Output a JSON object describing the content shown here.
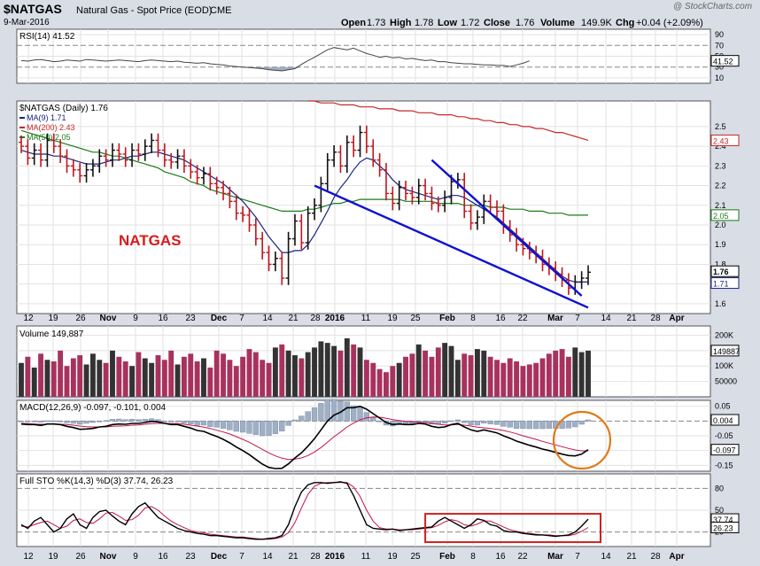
{
  "header": {
    "symbol": "$NATGAS",
    "name": "Natural Gas - Spot Price (EOD)",
    "exchange": "CME",
    "date": "9-Mar-2016",
    "watermark": "@ StockCharts.com",
    "ohlc": {
      "open_label": "Open",
      "open": "1.73",
      "high_label": "High",
      "high": "1.78",
      "low_label": "Low",
      "low": "1.72",
      "close_label": "Close",
      "close": "1.76",
      "volume_label": "Volume",
      "volume": "149.9K",
      "chg_label": "Chg",
      "chg": "+0.04 (+2.09%)"
    }
  },
  "annotation": "NATGAS",
  "x_axis_labels": [
    "12",
    "19",
    "26",
    "Nov",
    "9",
    "16",
    "23",
    "Dec",
    "7",
    "14",
    "21",
    "28",
    "2016",
    "11",
    "19",
    "25",
    "Feb",
    "8",
    "16",
    "22",
    "Mar",
    "7",
    "14",
    "21",
    "28",
    "Apr"
  ],
  "colors": {
    "up_bar": "#111111",
    "down_bar": "#c0161f",
    "ma9": "#1a237e",
    "ma200": "#c62828",
    "ma50": "#1b7a1b",
    "trend": "#1010d0",
    "vol_up": "#333333",
    "vol_down": "#a8325e",
    "highlight": "#e07a1a",
    "box": "#d02020",
    "panel_bg": "#ffffff",
    "frame_bg": "#d8dde6"
  },
  "chart_data": [
    {
      "panel": "rsi",
      "type": "line",
      "legend": "RSI(14) 41.52",
      "y_ticks": [
        10,
        30,
        41.52,
        50,
        70,
        90
      ],
      "last_value_label": "41.52",
      "overbought": 70,
      "oversold": 30,
      "ylim": [
        0,
        100
      ],
      "values": [
        42,
        41,
        43,
        44,
        42,
        40,
        41,
        43,
        42,
        41,
        44,
        43,
        42,
        41,
        42,
        43,
        42,
        41,
        40,
        42,
        43,
        42,
        41,
        40,
        41,
        39,
        38,
        37,
        38,
        36,
        35,
        34,
        32,
        31,
        30,
        29,
        28,
        27,
        25,
        24,
        23,
        25,
        27,
        35,
        42,
        48,
        55,
        62,
        66,
        64,
        62,
        65,
        60,
        55,
        52,
        48,
        50,
        47,
        48,
        45,
        46,
        44,
        42,
        43,
        40,
        40,
        38,
        37,
        36,
        36,
        35,
        34,
        34,
        33,
        33,
        31,
        34,
        37,
        41.52
      ]
    },
    {
      "panel": "price",
      "type": "ohlc",
      "legend": [
        "$NATGAS (Daily) 1.76",
        "MA(9) 1.71",
        "MA(200) 2.43",
        "MA(50) 2.05"
      ],
      "y_ticks": [
        1.6,
        1.7,
        1.8,
        1.9,
        2.0,
        2.1,
        2.2,
        2.3,
        2.4,
        2.5
      ],
      "ylim": [
        1.55,
        2.63
      ],
      "last_value_labels": {
        "close": "1.76",
        "ma9": "1.71",
        "ma200": "2.43",
        "ma50": "2.05"
      },
      "close": [
        2.4,
        2.34,
        2.38,
        2.33,
        2.43,
        2.4,
        2.35,
        2.3,
        2.28,
        2.25,
        2.28,
        2.3,
        2.35,
        2.33,
        2.38,
        2.36,
        2.33,
        2.38,
        2.36,
        2.4,
        2.43,
        2.38,
        2.33,
        2.32,
        2.35,
        2.3,
        2.27,
        2.24,
        2.26,
        2.21,
        2.19,
        2.16,
        2.12,
        2.06,
        2.05,
        2.0,
        1.93,
        1.86,
        1.8,
        1.83,
        1.73,
        1.93,
        2.02,
        1.91,
        2.06,
        2.1,
        2.21,
        2.33,
        2.37,
        2.3,
        2.42,
        2.38,
        2.47,
        2.4,
        2.33,
        2.28,
        2.16,
        2.11,
        2.19,
        2.16,
        2.14,
        2.2,
        2.16,
        2.11,
        2.1,
        2.14,
        2.22,
        2.23,
        2.07,
        2.01,
        2.04,
        2.12,
        2.09,
        2.07,
        1.99,
        1.95,
        1.9,
        1.88,
        1.86,
        1.84,
        1.8,
        1.78,
        1.75,
        1.72,
        1.68,
        1.71,
        1.73,
        1.76
      ],
      "ma9": [
        2.38,
        2.37,
        2.36,
        2.36,
        2.36,
        2.35,
        2.35,
        2.34,
        2.33,
        2.32,
        2.31,
        2.31,
        2.31,
        2.32,
        2.33,
        2.33,
        2.34,
        2.35,
        2.35,
        2.36,
        2.37,
        2.37,
        2.36,
        2.35,
        2.34,
        2.33,
        2.31,
        2.29,
        2.27,
        2.25,
        2.23,
        2.21,
        2.18,
        2.15,
        2.12,
        2.08,
        2.04,
        1.99,
        1.94,
        1.9,
        1.86,
        1.86,
        1.87,
        1.87,
        1.9,
        1.95,
        2.01,
        2.07,
        2.14,
        2.19,
        2.23,
        2.28,
        2.32,
        2.34,
        2.33,
        2.3,
        2.27,
        2.23,
        2.2,
        2.18,
        2.17,
        2.16,
        2.15,
        2.14,
        2.13,
        2.14,
        2.15,
        2.15,
        2.14,
        2.12,
        2.1,
        2.08,
        2.06,
        2.04,
        2.01,
        1.98,
        1.95,
        1.92,
        1.89,
        1.86,
        1.83,
        1.8,
        1.77,
        1.74,
        1.72,
        1.71,
        1.71,
        1.71
      ],
      "ma50": [
        2.48,
        2.47,
        2.46,
        2.45,
        2.44,
        2.43,
        2.42,
        2.41,
        2.4,
        2.39,
        2.38,
        2.37,
        2.37,
        2.36,
        2.35,
        2.35,
        2.34,
        2.33,
        2.32,
        2.31,
        2.3,
        2.29,
        2.27,
        2.26,
        2.25,
        2.24,
        2.22,
        2.21,
        2.2,
        2.18,
        2.17,
        2.16,
        2.15,
        2.14,
        2.13,
        2.12,
        2.11,
        2.1,
        2.09,
        2.08,
        2.07,
        2.07,
        2.07,
        2.07,
        2.08,
        2.08,
        2.09,
        2.1,
        2.11,
        2.11,
        2.12,
        2.12,
        2.13,
        2.13,
        2.13,
        2.13,
        2.13,
        2.13,
        2.13,
        2.12,
        2.12,
        2.12,
        2.12,
        2.12,
        2.11,
        2.11,
        2.11,
        2.11,
        2.1,
        2.1,
        2.1,
        2.1,
        2.09,
        2.09,
        2.09,
        2.08,
        2.08,
        2.08,
        2.07,
        2.07,
        2.07,
        2.06,
        2.06,
        2.06,
        2.05,
        2.05,
        2.05,
        2.05
      ],
      "ma200": [
        null,
        null,
        null,
        null,
        null,
        null,
        null,
        null,
        null,
        null,
        null,
        null,
        null,
        null,
        null,
        null,
        null,
        null,
        null,
        null,
        null,
        null,
        null,
        null,
        null,
        null,
        null,
        null,
        null,
        null,
        null,
        null,
        null,
        null,
        null,
        null,
        null,
        null,
        null,
        null,
        null,
        null,
        null,
        null,
        2.63,
        2.63,
        2.62,
        2.62,
        2.62,
        2.61,
        2.61,
        2.61,
        2.6,
        2.6,
        2.6,
        2.59,
        2.59,
        2.59,
        2.58,
        2.58,
        2.58,
        2.57,
        2.57,
        2.57,
        2.56,
        2.56,
        2.56,
        2.55,
        2.55,
        2.54,
        2.54,
        2.53,
        2.53,
        2.52,
        2.52,
        2.51,
        2.51,
        2.5,
        2.5,
        2.49,
        2.49,
        2.48,
        2.47,
        2.47,
        2.46,
        2.45,
        2.44,
        2.43
      ]
    },
    {
      "panel": "volume",
      "type": "bar",
      "legend": "Volume 149,887",
      "y_ticks": [
        "50000",
        "100K",
        "150K",
        "200K"
      ],
      "y_tick_values": [
        50000,
        100000,
        150000,
        200000
      ],
      "last_value_label": "149887",
      "ylim": [
        0,
        230000
      ],
      "values": [
        110000,
        130000,
        95000,
        140000,
        120000,
        115000,
        150000,
        100000,
        125000,
        135000,
        105000,
        140000,
        120000,
        110000,
        150000,
        130000,
        115000,
        100000,
        145000,
        125000,
        110000,
        135000,
        120000,
        150000,
        105000,
        130000,
        140000,
        115000,
        125000,
        95000,
        150000,
        140000,
        120000,
        100000,
        130000,
        155000,
        145000,
        120000,
        110000,
        160000,
        170000,
        150000,
        135000,
        125000,
        145000,
        160000,
        180000,
        175000,
        165000,
        150000,
        190000,
        170000,
        160000,
        120000,
        110000,
        90000,
        80000,
        100000,
        110000,
        130000,
        140000,
        170000,
        150000,
        130000,
        160000,
        175000,
        165000,
        120000,
        140000,
        135000,
        155000,
        150000,
        130000,
        120000,
        110000,
        125000,
        115000,
        100000,
        105000,
        110000,
        125000,
        140000,
        150000,
        155000,
        130000,
        160000,
        145000,
        149887
      ]
    },
    {
      "panel": "macd",
      "type": "line",
      "legend": "MACD(12,26,9) -0.097, -0.101, 0.004",
      "y_ticks": [
        -0.15,
        -0.1,
        -0.05,
        0.0,
        0.05
      ],
      "last_value_labels": {
        "hist": "0.004",
        "macd": "-0.097"
      },
      "ylim": [
        -0.17,
        0.07
      ],
      "series": [
        {
          "name": "MACD",
          "values": [
            -0.01,
            -0.012,
            -0.012,
            -0.015,
            -0.01,
            -0.01,
            -0.012,
            -0.018,
            -0.022,
            -0.028,
            -0.027,
            -0.025,
            -0.02,
            -0.018,
            -0.012,
            -0.01,
            -0.011,
            -0.008,
            -0.008,
            -0.005,
            -0.001,
            -0.003,
            -0.008,
            -0.012,
            -0.012,
            -0.018,
            -0.024,
            -0.032,
            -0.035,
            -0.044,
            -0.052,
            -0.062,
            -0.074,
            -0.088,
            -0.1,
            -0.114,
            -0.13,
            -0.146,
            -0.157,
            -0.161,
            -0.16,
            -0.145,
            -0.125,
            -0.108,
            -0.085,
            -0.06,
            -0.03,
            0.0,
            0.02,
            0.03,
            0.045,
            0.045,
            0.05,
            0.04,
            0.025,
            0.01,
            -0.005,
            -0.012,
            -0.01,
            -0.012,
            -0.012,
            -0.008,
            -0.01,
            -0.018,
            -0.022,
            -0.02,
            -0.012,
            -0.008,
            -0.02,
            -0.03,
            -0.035,
            -0.03,
            -0.035,
            -0.04,
            -0.05,
            -0.058,
            -0.068,
            -0.075,
            -0.082,
            -0.088,
            -0.095,
            -0.1,
            -0.106,
            -0.112,
            -0.117,
            -0.118,
            -0.112,
            -0.097
          ]
        },
        {
          "name": "Signal",
          "values": [
            -0.008,
            -0.009,
            -0.01,
            -0.011,
            -0.011,
            -0.011,
            -0.011,
            -0.012,
            -0.014,
            -0.017,
            -0.019,
            -0.02,
            -0.02,
            -0.02,
            -0.018,
            -0.017,
            -0.016,
            -0.014,
            -0.013,
            -0.011,
            -0.009,
            -0.008,
            -0.008,
            -0.009,
            -0.009,
            -0.011,
            -0.014,
            -0.017,
            -0.021,
            -0.025,
            -0.031,
            -0.037,
            -0.044,
            -0.053,
            -0.062,
            -0.072,
            -0.084,
            -0.096,
            -0.108,
            -0.118,
            -0.126,
            -0.13,
            -0.129,
            -0.125,
            -0.117,
            -0.105,
            -0.09,
            -0.072,
            -0.053,
            -0.037,
            -0.02,
            -0.007,
            0.004,
            0.011,
            0.014,
            0.013,
            0.009,
            0.005,
            0.002,
            -0.001,
            -0.003,
            -0.004,
            -0.005,
            -0.008,
            -0.011,
            -0.013,
            -0.013,
            -0.012,
            -0.014,
            -0.017,
            -0.021,
            -0.023,
            -0.025,
            -0.028,
            -0.032,
            -0.037,
            -0.043,
            -0.05,
            -0.056,
            -0.062,
            -0.069,
            -0.075,
            -0.081,
            -0.087,
            -0.093,
            -0.098,
            -0.101,
            -0.101
          ]
        },
        {
          "name": "Histogram",
          "values": [
            -0.002,
            -0.003,
            -0.002,
            -0.004,
            0.001,
            0.001,
            -0.001,
            -0.006,
            -0.008,
            -0.011,
            -0.008,
            -0.005,
            0.0,
            0.002,
            0.006,
            0.007,
            0.005,
            0.006,
            0.005,
            0.006,
            0.008,
            0.005,
            0.0,
            -0.003,
            -0.003,
            -0.007,
            -0.01,
            -0.015,
            -0.014,
            -0.019,
            -0.021,
            -0.025,
            -0.03,
            -0.035,
            -0.038,
            -0.042,
            -0.046,
            -0.05,
            -0.049,
            -0.043,
            -0.034,
            -0.015,
            0.004,
            0.017,
            0.032,
            0.045,
            0.06,
            0.072,
            0.073,
            0.067,
            0.065,
            0.052,
            0.046,
            0.029,
            0.011,
            -0.003,
            -0.014,
            -0.017,
            -0.012,
            -0.011,
            -0.009,
            -0.004,
            -0.005,
            -0.01,
            -0.011,
            -0.007,
            0.001,
            0.004,
            -0.006,
            -0.013,
            -0.014,
            -0.007,
            -0.01,
            -0.012,
            -0.018,
            -0.021,
            -0.025,
            -0.025,
            -0.026,
            -0.026,
            -0.026,
            -0.025,
            -0.025,
            -0.025,
            -0.024,
            -0.02,
            -0.011,
            0.004
          ]
        }
      ]
    },
    {
      "panel": "stochastic",
      "type": "line",
      "legend": "Full STO %K(14,3) %D(3) 37.74, 26.23",
      "y_ticks": [
        20,
        50,
        80
      ],
      "last_value_labels": {
        "k": "37.74",
        "d": "26.23"
      },
      "ylim": [
        0,
        100
      ],
      "series": [
        {
          "name": "%K",
          "values": [
            30,
            25,
            35,
            40,
            30,
            20,
            25,
            38,
            45,
            30,
            25,
            40,
            48,
            50,
            42,
            35,
            30,
            45,
            55,
            60,
            50,
            40,
            35,
            30,
            25,
            22,
            20,
            18,
            17,
            15,
            15,
            14,
            13,
            12,
            12,
            11,
            10,
            10,
            11,
            12,
            15,
            30,
            55,
            75,
            85,
            88,
            88,
            87,
            88,
            89,
            87,
            70,
            50,
            30,
            25,
            24,
            23,
            24,
            22,
            23,
            24,
            25,
            26,
            27,
            35,
            40,
            35,
            30,
            25,
            30,
            38,
            36,
            30,
            28,
            22,
            20,
            20,
            18,
            17,
            16,
            16,
            15,
            14,
            15,
            16,
            20,
            28,
            37.74
          ]
        },
        {
          "name": "%D",
          "values": [
            28,
            27,
            30,
            33,
            35,
            30,
            25,
            28,
            36,
            38,
            33,
            32,
            38,
            46,
            47,
            42,
            36,
            37,
            43,
            53,
            55,
            50,
            42,
            35,
            30,
            26,
            22,
            20,
            19,
            17,
            16,
            15,
            14,
            13,
            13,
            12,
            11,
            10,
            10,
            11,
            13,
            19,
            33,
            53,
            72,
            83,
            87,
            88,
            88,
            88,
            88,
            82,
            69,
            50,
            35,
            26,
            24,
            24,
            23,
            23,
            23,
            24,
            25,
            26,
            29,
            34,
            37,
            35,
            30,
            28,
            31,
            35,
            35,
            31,
            27,
            23,
            21,
            19,
            18,
            17,
            16,
            16,
            15,
            15,
            15,
            17,
            21,
            26.23
          ]
        }
      ]
    }
  ]
}
